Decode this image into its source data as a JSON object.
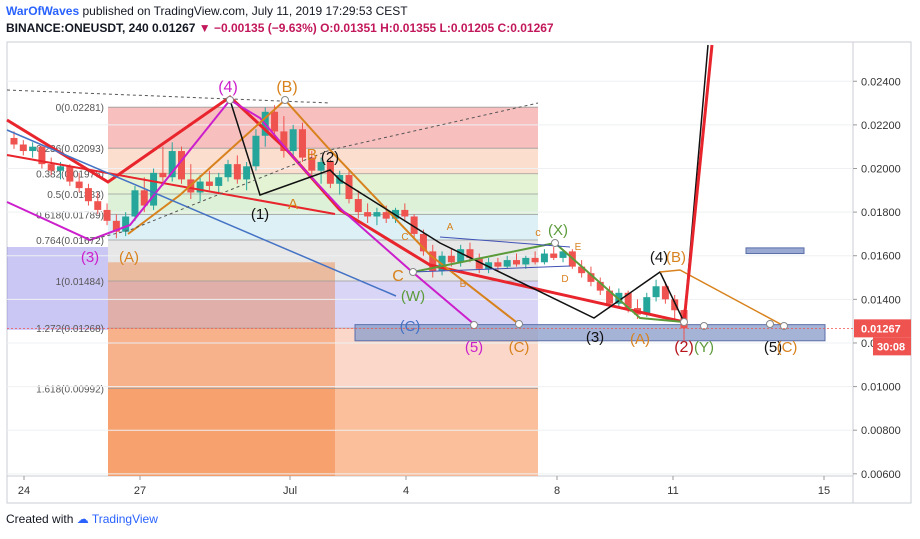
{
  "header": {
    "author": "WarOfWaves",
    "published_text": "published on TradingView.com, July 11, 2019 17:29:53 CEST",
    "symbol_line": "BINANCE:ONEUSDT, 240",
    "last": "0.01267",
    "change": "▼ −0.00135 (−9.63%)",
    "ohlc": "O:0.01351 H:0.01355 L:0.01205 C:0.01267"
  },
  "footer": {
    "created_with": "Created with",
    "brand": "TradingView"
  },
  "colors": {
    "bull": "#26a69a",
    "bear": "#ef5350",
    "red_trend": "#e8242c",
    "magenta": "#cc1fcc",
    "orange": "#d8821d",
    "green": "#5b9b3a",
    "black": "#111111",
    "blue": "#4472c4",
    "price_tag": "#ef5350"
  },
  "chart_data": {
    "type": "candlestick",
    "y_axis": {
      "ticks": [
        "0.02400",
        "0.02200",
        "0.02000",
        "0.01800",
        "0.01600",
        "0.01400",
        "0.01200",
        "0.01000",
        "0.00800",
        "0.00600"
      ],
      "ylim": [
        0.0059,
        0.0258
      ]
    },
    "x_axis": {
      "ticks": [
        "24",
        "27",
        "Jul",
        "4",
        "8",
        "11",
        "15"
      ]
    },
    "last_price_label": "0.01267",
    "countdown": "30:08",
    "fibonacci": [
      {
        "label": "0(0.02281)",
        "value": 0.02281
      },
      {
        "label": "0.236(0.02093)",
        "value": 0.02093
      },
      {
        "label": "0.382(0.01976)",
        "value": 0.01976
      },
      {
        "label": "0.5(0.01883)",
        "value": 0.01883
      },
      {
        "label": "0.618(0.01789)",
        "value": 0.01789
      },
      {
        "label": "0.764(0.01672)",
        "value": 0.01672
      },
      {
        "label": "1(0.01484)",
        "value": 0.01484
      },
      {
        "label": "1.272(0.01268)",
        "value": 0.01268
      },
      {
        "label": "1.618(0.00992)",
        "value": 0.00992
      }
    ],
    "wave_labels": [
      {
        "text": "(4)",
        "color": "magenta"
      },
      {
        "text": "(B)",
        "color": "orange"
      },
      {
        "text": "(2)",
        "color": "black"
      },
      {
        "text": "B",
        "color": "orange"
      },
      {
        "text": "(1)",
        "color": "black"
      },
      {
        "text": "A",
        "color": "orange"
      },
      {
        "text": "(3)",
        "color": "magenta"
      },
      {
        "text": "(A)",
        "color": "orange"
      },
      {
        "text": "C",
        "color": "orange"
      },
      {
        "text": "(W)",
        "color": "green"
      },
      {
        "text": "(C)",
        "color": "blue"
      },
      {
        "text": "(5)",
        "color": "magenta"
      },
      {
        "text": "(C)",
        "color": "orange"
      },
      {
        "text": "c",
        "color": "orange"
      },
      {
        "text": "(X)",
        "color": "green"
      },
      {
        "text": "A",
        "color": "orange"
      },
      {
        "text": "B",
        "color": "orange"
      },
      {
        "text": "C",
        "color": "orange"
      },
      {
        "text": "D",
        "color": "orange"
      },
      {
        "text": "E",
        "color": "orange"
      },
      {
        "text": "(3)",
        "color": "black"
      },
      {
        "text": "(A)",
        "color": "orange"
      },
      {
        "text": "(4)",
        "color": "black"
      },
      {
        "text": "(B)",
        "color": "orange"
      },
      {
        "text": "(2)",
        "color": "red"
      },
      {
        "text": "(Y)",
        "color": "green"
      },
      {
        "text": "(5)",
        "color": "black"
      },
      {
        "text": "(C)",
        "color": "orange"
      }
    ],
    "candles": [
      [
        0.0214,
        0.0217,
        0.0209,
        0.0211
      ],
      [
        0.0211,
        0.0213,
        0.0206,
        0.0208
      ],
      [
        0.0208,
        0.0212,
        0.0205,
        0.021
      ],
      [
        0.021,
        0.0211,
        0.02,
        0.0202
      ],
      [
        0.0202,
        0.0205,
        0.0197,
        0.0199
      ],
      [
        0.0199,
        0.0203,
        0.0195,
        0.0201
      ],
      [
        0.0201,
        0.0202,
        0.0192,
        0.0194
      ],
      [
        0.0194,
        0.0198,
        0.0189,
        0.0191
      ],
      [
        0.0191,
        0.0193,
        0.0183,
        0.0185
      ],
      [
        0.0185,
        0.0189,
        0.0179,
        0.0181
      ],
      [
        0.0181,
        0.0184,
        0.0174,
        0.0176
      ],
      [
        0.0176,
        0.0179,
        0.0168,
        0.0171
      ],
      [
        0.0171,
        0.018,
        0.0169,
        0.0178
      ],
      [
        0.0178,
        0.0192,
        0.0176,
        0.019
      ],
      [
        0.019,
        0.0196,
        0.018,
        0.0183
      ],
      [
        0.0183,
        0.02,
        0.0181,
        0.0198
      ],
      [
        0.0198,
        0.021,
        0.0192,
        0.0196
      ],
      [
        0.0196,
        0.0212,
        0.0194,
        0.0208
      ],
      [
        0.0208,
        0.021,
        0.0193,
        0.0195
      ],
      [
        0.0195,
        0.0202,
        0.0186,
        0.0189
      ],
      [
        0.0189,
        0.0197,
        0.0185,
        0.0194
      ],
      [
        0.0194,
        0.0199,
        0.019,
        0.0192
      ],
      [
        0.0192,
        0.0198,
        0.0189,
        0.0196
      ],
      [
        0.0196,
        0.0204,
        0.0194,
        0.0202
      ],
      [
        0.0202,
        0.0206,
        0.0193,
        0.0195
      ],
      [
        0.0195,
        0.0203,
        0.019,
        0.0201
      ],
      [
        0.0201,
        0.0218,
        0.0199,
        0.0215
      ],
      [
        0.0215,
        0.0228,
        0.021,
        0.0226
      ],
      [
        0.0226,
        0.0229,
        0.0214,
        0.0217
      ],
      [
        0.0217,
        0.0224,
        0.0205,
        0.0208
      ],
      [
        0.0208,
        0.022,
        0.0206,
        0.0218
      ],
      [
        0.0218,
        0.0221,
        0.0203,
        0.0205
      ],
      [
        0.0205,
        0.0208,
        0.0196,
        0.0199
      ],
      [
        0.0199,
        0.0205,
        0.0193,
        0.0203
      ],
      [
        0.0203,
        0.0204,
        0.0191,
        0.0193
      ],
      [
        0.0193,
        0.0199,
        0.0188,
        0.0197
      ],
      [
        0.0197,
        0.0199,
        0.0184,
        0.0186
      ],
      [
        0.0186,
        0.019,
        0.0177,
        0.018
      ],
      [
        0.018,
        0.0184,
        0.0175,
        0.0178
      ],
      [
        0.0178,
        0.0182,
        0.0174,
        0.018
      ],
      [
        0.018,
        0.0183,
        0.0175,
        0.0177
      ],
      [
        0.0177,
        0.0182,
        0.0175,
        0.0181
      ],
      [
        0.0181,
        0.0184,
        0.0176,
        0.0178
      ],
      [
        0.0178,
        0.0179,
        0.0168,
        0.017
      ],
      [
        0.017,
        0.0172,
        0.016,
        0.0162
      ],
      [
        0.0162,
        0.0165,
        0.015,
        0.0153
      ],
      [
        0.0153,
        0.0162,
        0.0151,
        0.016
      ],
      [
        0.016,
        0.0163,
        0.0155,
        0.0157
      ],
      [
        0.0157,
        0.0165,
        0.0155,
        0.0163
      ],
      [
        0.0163,
        0.0166,
        0.0157,
        0.0159
      ],
      [
        0.0159,
        0.0161,
        0.0152,
        0.0154
      ],
      [
        0.0154,
        0.0159,
        0.0152,
        0.0157
      ],
      [
        0.0157,
        0.0159,
        0.0153,
        0.0155
      ],
      [
        0.0155,
        0.016,
        0.0154,
        0.0158
      ],
      [
        0.0158,
        0.0161,
        0.0155,
        0.0156
      ],
      [
        0.0156,
        0.016,
        0.0154,
        0.0159
      ],
      [
        0.0159,
        0.0162,
        0.0156,
        0.0157
      ],
      [
        0.0157,
        0.0163,
        0.0156,
        0.0161
      ],
      [
        0.0161,
        0.0164,
        0.0158,
        0.0159
      ],
      [
        0.0159,
        0.0163,
        0.0157,
        0.0162
      ],
      [
        0.0162,
        0.0163,
        0.0154,
        0.0155
      ],
      [
        0.0155,
        0.0158,
        0.015,
        0.0152
      ],
      [
        0.0152,
        0.0155,
        0.0146,
        0.0148
      ],
      [
        0.0148,
        0.015,
        0.0142,
        0.0144
      ],
      [
        0.0144,
        0.0146,
        0.0136,
        0.0138
      ],
      [
        0.0138,
        0.0145,
        0.0136,
        0.0143
      ],
      [
        0.0143,
        0.0144,
        0.0134,
        0.0136
      ],
      [
        0.0136,
        0.014,
        0.0131,
        0.0133
      ],
      [
        0.0133,
        0.0143,
        0.0132,
        0.0141
      ],
      [
        0.0141,
        0.0149,
        0.0139,
        0.0146
      ],
      [
        0.0146,
        0.0148,
        0.0138,
        0.014
      ],
      [
        0.014,
        0.0142,
        0.0131,
        0.0135
      ],
      [
        0.01351,
        0.01355,
        0.01205,
        0.01267
      ]
    ]
  }
}
